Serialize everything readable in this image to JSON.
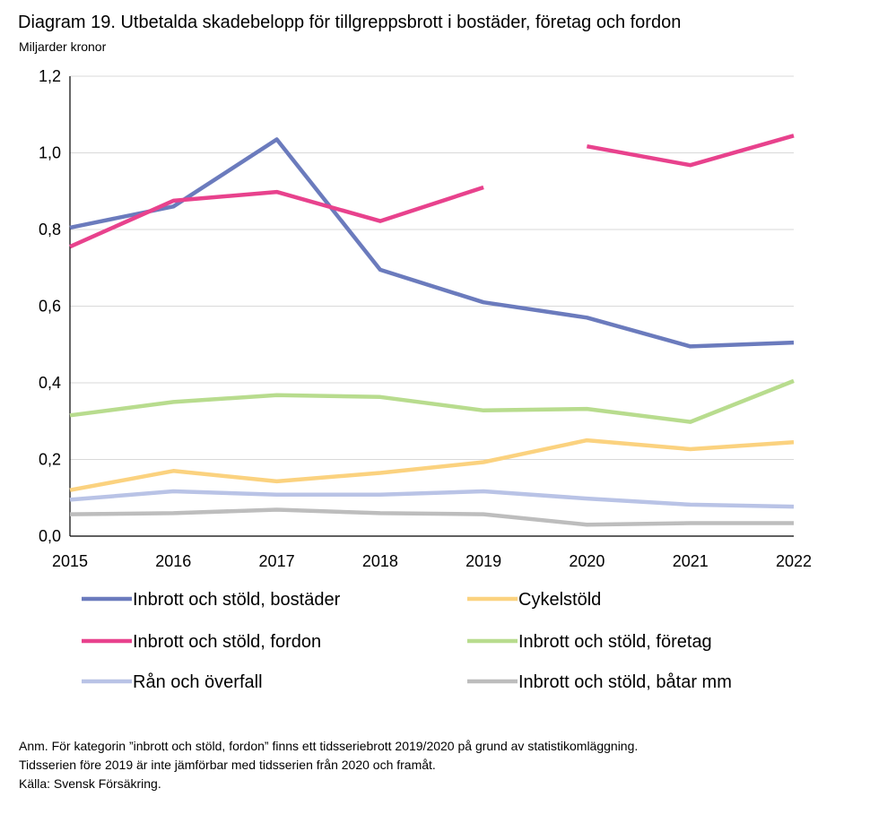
{
  "chart_data": {
    "type": "line",
    "title": "Diagram 19. Utbetalda skadebelopp för tillgreppsbrott i bostäder, företag och fordon",
    "subtitle": "Miljarder kronor",
    "categories": [
      "2015",
      "2016",
      "2017",
      "2018",
      "2019",
      "2020",
      "2021",
      "2022"
    ],
    "ylim": [
      0,
      1.2
    ],
    "yticks": [
      0,
      0.2,
      0.4,
      0.6,
      0.8,
      1.0,
      1.2
    ],
    "ytick_labels": [
      "0,0",
      "0,2",
      "0,4",
      "0,6",
      "0,8",
      "1,0",
      "1,2"
    ],
    "grid": true,
    "legend_position": "bottom",
    "series": [
      {
        "name": "Inbrott och stöld, bostäder",
        "color": "#6b7bbd",
        "values": [
          0.805,
          0.86,
          1.035,
          0.695,
          0.61,
          0.57,
          0.495,
          0.505
        ]
      },
      {
        "name": "Cykelstöld",
        "color": "#fbd27f",
        "values": [
          0.12,
          0.17,
          0.143,
          0.165,
          0.193,
          0.25,
          0.227,
          0.245
        ]
      },
      {
        "name": "Inbrott och stöld, fordon",
        "color": "#e8428d",
        "values": [
          0.755,
          0.875,
          0.898,
          0.822,
          0.91,
          1.017,
          0.968,
          1.045
        ],
        "break_after_index": 4
      },
      {
        "name": "Inbrott och stöld, företag",
        "color": "#b8dc8e",
        "values": [
          0.315,
          0.35,
          0.368,
          0.363,
          0.328,
          0.332,
          0.298,
          0.405
        ]
      },
      {
        "name": "Rån och överfall",
        "color": "#b9c3e6",
        "values": [
          0.095,
          0.117,
          0.108,
          0.108,
          0.117,
          0.098,
          0.082,
          0.077
        ]
      },
      {
        "name": "Inbrott och stöld, båtar mm",
        "color": "#bdbdbd",
        "values": [
          0.057,
          0.06,
          0.069,
          0.06,
          0.057,
          0.03,
          0.034,
          0.034
        ]
      }
    ]
  },
  "notes": [
    "Anm. För kategorin ”inbrott och stöld, fordon” finns ett tidsseriebrott 2019/2020 på grund av statistikomläggning.",
    "Tidsserien före 2019 är inte jämförbar med tidsserien från 2020 och framåt.",
    "Källa: Svensk Försäkring."
  ]
}
